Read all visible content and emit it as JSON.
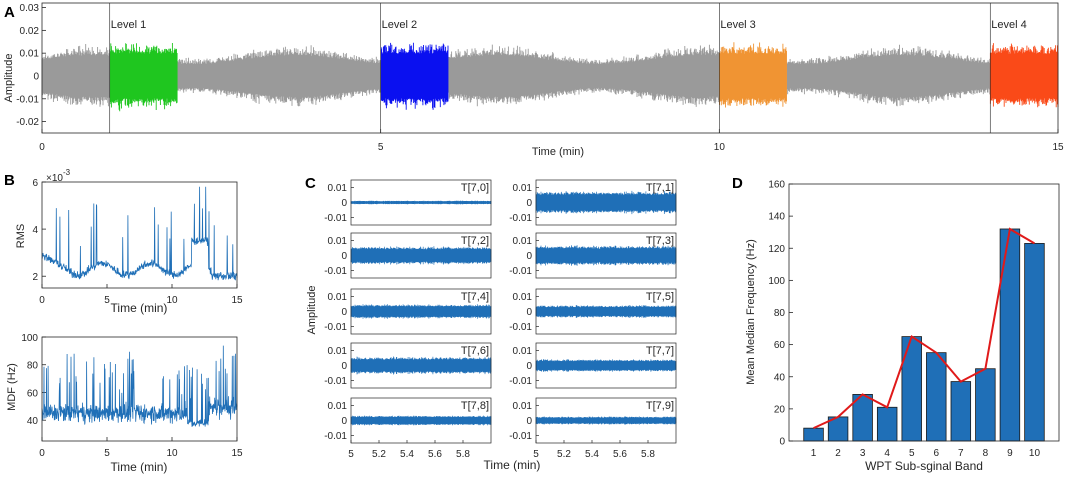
{
  "chart_data": [
    {
      "panel": "A",
      "type": "line",
      "xlabel": "Time (min)",
      "ylabel": "Amplitude",
      "xlim": [
        0,
        15
      ],
      "ylim": [
        -0.025,
        0.032
      ],
      "xticks": [
        "0",
        "5",
        "10",
        "15"
      ],
      "yticks": [
        "0.03",
        "0.02",
        "0.01",
        "0",
        "-0.01",
        "-0.02"
      ],
      "baseline_color": "#9a9a9a",
      "segments": [
        {
          "label": "Level 1",
          "start": 1.0,
          "end": 2.0,
          "color": "#1fc61f"
        },
        {
          "label": "Level 2",
          "start": 5.0,
          "end": 6.0,
          "color": "#0a10f0"
        },
        {
          "label": "Level 3",
          "start": 10.0,
          "end": 11.0,
          "color": "#f09433"
        },
        {
          "label": "Level 4",
          "start": 14.0,
          "end": 15.0,
          "color": "#fa4a18"
        }
      ]
    },
    {
      "panel": "B",
      "type": "line",
      "title_exponent": "×10",
      "exponent": "-3",
      "xlabel": "Time (min)",
      "ylabel": "RMS",
      "xlim": [
        0,
        15
      ],
      "ylim": [
        1.5,
        6
      ],
      "xticks": [
        "0",
        "5",
        "10",
        "15"
      ],
      "yticks": [
        "6",
        "4",
        "2"
      ],
      "color": "#1f6fb7"
    },
    {
      "panel": "B2",
      "type": "line",
      "xlabel": "Time (min)",
      "ylabel": "MDF (Hz)",
      "xlim": [
        0,
        15
      ],
      "ylim": [
        25,
        100
      ],
      "xticks": [
        "0",
        "5",
        "10",
        "15"
      ],
      "yticks": [
        "100",
        "80",
        "60",
        "40"
      ],
      "color": "#1f6fb7"
    },
    {
      "panel": "C",
      "type": "line",
      "xlabel": "Time (min)",
      "ylabel": "Amplitude",
      "xlim": [
        5,
        6
      ],
      "ylim": [
        -0.015,
        0.015
      ],
      "xticks": [
        "5",
        "5.2",
        "5.4",
        "5.6",
        "5.8"
      ],
      "yticks": [
        "0.01",
        "0",
        "-0.01"
      ],
      "color": "#1f6fb7",
      "subplots": [
        {
          "label": "T[7,0]",
          "amp": 0.0008
        },
        {
          "label": "T[7,1]",
          "amp": 0.005
        },
        {
          "label": "T[7,2]",
          "amp": 0.004
        },
        {
          "label": "T[7,3]",
          "amp": 0.0045
        },
        {
          "label": "T[7,4]",
          "amp": 0.0032
        },
        {
          "label": "T[7,5]",
          "amp": 0.0028
        },
        {
          "label": "T[7,6]",
          "amp": 0.0038
        },
        {
          "label": "T[7,7]",
          "amp": 0.0028
        },
        {
          "label": "T[7,8]",
          "amp": 0.0022
        },
        {
          "label": "T[7,9]",
          "amp": 0.0018
        }
      ]
    },
    {
      "panel": "D",
      "type": "bar",
      "xlabel": "WPT Sub-sginal Band",
      "ylabel": "Mean Median Frequency (Hz)",
      "categories": [
        "1",
        "2",
        "3",
        "4",
        "5",
        "6",
        "7",
        "8",
        "9",
        "10"
      ],
      "values": [
        8,
        15,
        29,
        21,
        65,
        55,
        37,
        45,
        132,
        123
      ],
      "ylim": [
        0,
        160
      ],
      "yticks": [
        "160",
        "140",
        "120",
        "100",
        "80",
        "60",
        "40",
        "20",
        "0"
      ],
      "bar_color": "#1f6fb7",
      "line_color": "#e01a1a"
    }
  ]
}
